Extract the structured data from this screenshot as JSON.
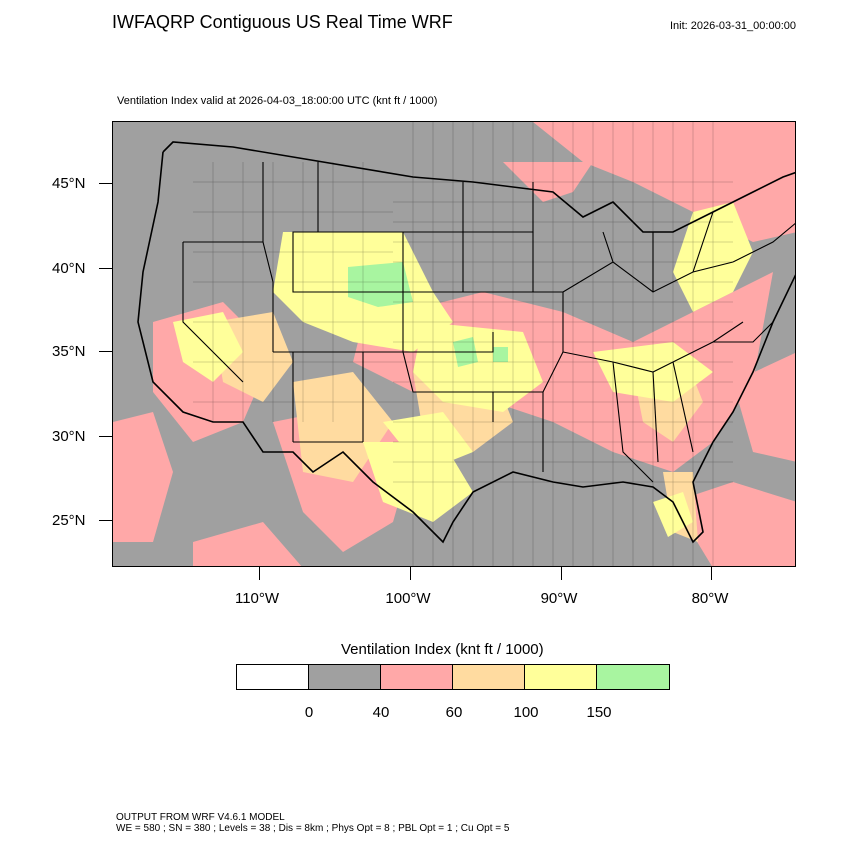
{
  "header": {
    "title": "IWFAQRP Contiguous US Real Time WRF",
    "init": "Init: 2026-03-31_00:00:00"
  },
  "map": {
    "subtitle": "Ventilation Index valid at 2026-04-03_18:00:00 UTC   (knt ft / 1000)",
    "lat_labels": [
      "45°N",
      "40°N",
      "35°N",
      "30°N",
      "25°N"
    ],
    "lon_labels": [
      "110°W",
      "100°W",
      "90°W",
      "80°W"
    ],
    "colors": {
      "bin_0_40": "#a0a0a0",
      "bin_40_60": "#ffa8a8",
      "bin_60_100": "#ffdba0",
      "bin_100_150": "#ffff9a",
      "bin_150_plus": "#a8f5a0",
      "borders": "#000000"
    }
  },
  "colorbar": {
    "title": "Ventilation Index  (knt ft / 1000)",
    "colors": [
      "#ffffff",
      "#a0a0a0",
      "#ffa8a8",
      "#ffdba0",
      "#ffff9a",
      "#a8f5a0"
    ],
    "labels": [
      "0",
      "40",
      "60",
      "100",
      "150"
    ]
  },
  "footer": {
    "line1": "OUTPUT FROM WRF V4.6.1 MODEL",
    "line2": "WE = 580 ; SN = 380 ; Levels = 38 ; Dis = 8km ; Phys Opt = 8 ; PBL Opt = 1 ; Cu Opt = 5"
  }
}
